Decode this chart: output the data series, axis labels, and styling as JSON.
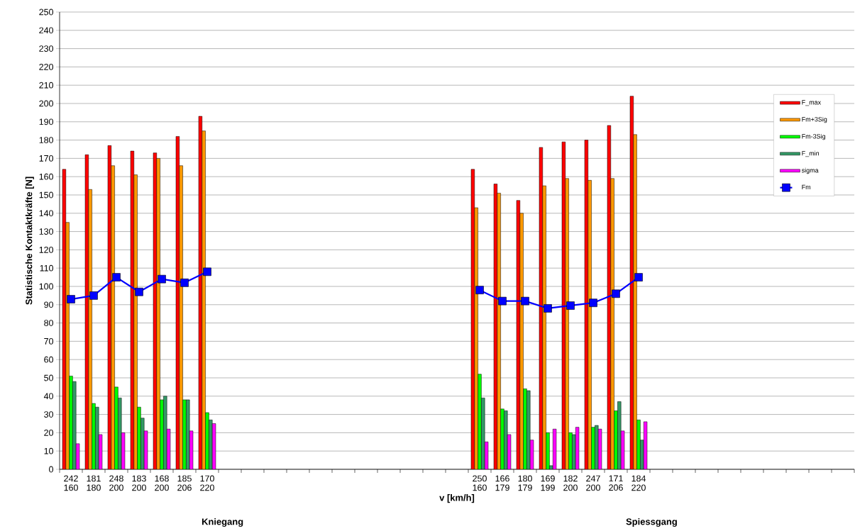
{
  "chart_data": {
    "type": "bar",
    "xlabel": "v [km/h]",
    "ylabel": "Statistische Kontaktkräfte [N]",
    "categories": [
      "242 160",
      "181 180",
      "248 200",
      "183 200",
      "168 200",
      "185 206",
      "170 220",
      null,
      null,
      null,
      null,
      null,
      null,
      null,
      null,
      null,
      null,
      null,
      "250 160",
      "166 179",
      "180 179",
      "169 199",
      "182 200",
      "247 200",
      "171 206",
      "184 220",
      null,
      null,
      null,
      null,
      null,
      null,
      null,
      null,
      null
    ],
    "series": [
      {
        "name": "F_max",
        "color": "#ff0000",
        "values": [
          164,
          172,
          177,
          174,
          173,
          182,
          193,
          null,
          null,
          null,
          null,
          null,
          null,
          null,
          null,
          null,
          null,
          null,
          164,
          156,
          147,
          176,
          179,
          180,
          188,
          204,
          null,
          null,
          null,
          null,
          null,
          null,
          null,
          null,
          null
        ]
      },
      {
        "name": "Fm+3Sig",
        "color": "#ff9900",
        "values": [
          135,
          153,
          166,
          161,
          170,
          166,
          185,
          null,
          null,
          null,
          null,
          null,
          null,
          null,
          null,
          null,
          null,
          null,
          143,
          151,
          140,
          155,
          159,
          158,
          159,
          183,
          null,
          null,
          null,
          null,
          null,
          null,
          null,
          null,
          null
        ]
      },
      {
        "name": "Fm-3Sig",
        "color": "#00ff00",
        "values": [
          51,
          36,
          45,
          34,
          38,
          38,
          31,
          null,
          null,
          null,
          null,
          null,
          null,
          null,
          null,
          null,
          null,
          null,
          52,
          33,
          44,
          20,
          20,
          23,
          32,
          27,
          null,
          null,
          null,
          null,
          null,
          null,
          null,
          null,
          null
        ]
      },
      {
        "name": "F_min",
        "color": "#339966",
        "values": [
          48,
          34,
          39,
          28,
          40,
          38,
          27,
          null,
          null,
          null,
          null,
          null,
          null,
          null,
          null,
          null,
          null,
          null,
          39,
          32,
          43,
          2,
          19,
          24,
          37,
          16,
          null,
          null,
          null,
          null,
          null,
          null,
          null,
          null,
          null
        ]
      },
      {
        "name": "sigma",
        "color": "#ff00ff",
        "values": [
          14,
          19,
          20,
          21,
          22,
          21,
          25,
          null,
          null,
          null,
          null,
          null,
          null,
          null,
          null,
          null,
          null,
          null,
          15,
          19,
          16,
          22,
          23,
          22,
          21,
          26,
          null,
          null,
          null,
          null,
          null,
          null,
          null,
          null,
          null
        ]
      },
      {
        "name": "Fm",
        "type": "line",
        "color": "#0000ff",
        "marker": "square",
        "line_style": "solid",
        "values": [
          93,
          95,
          105,
          97,
          104,
          102,
          108,
          null,
          null,
          null,
          null,
          null,
          null,
          null,
          null,
          null,
          null,
          null,
          98,
          92,
          92,
          88,
          89.5,
          91,
          96,
          105,
          null,
          null,
          null,
          null,
          null,
          null,
          null,
          null,
          null
        ]
      }
    ],
    "ylim": [
      0,
      250
    ],
    "yticks": [
      0,
      10,
      20,
      30,
      40,
      50,
      60,
      70,
      80,
      90,
      100,
      110,
      120,
      130,
      140,
      150,
      160,
      170,
      180,
      190,
      200,
      210,
      220,
      230,
      240,
      250
    ],
    "grid": "y",
    "legend": "top right",
    "annotations": [
      "Kniegang",
      "Spiessgang"
    ]
  }
}
